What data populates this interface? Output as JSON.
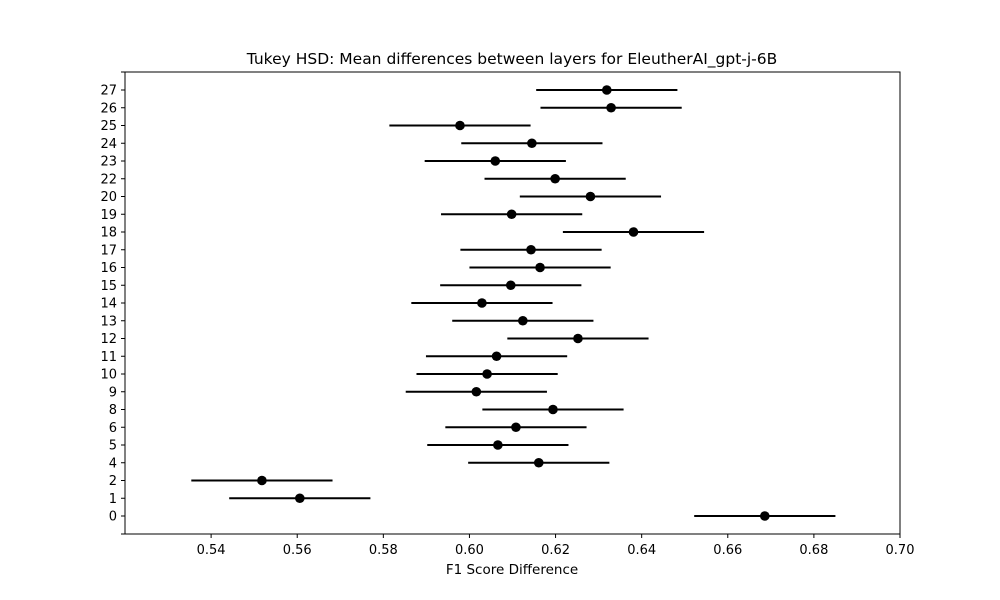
{
  "chart_data": {
    "type": "scatter",
    "subtype": "errorbar",
    "title": "Tukey HSD: Mean differences between layers for EleutherAI_gpt-j-6B",
    "xlabel": "F1 Score Difference",
    "ylabel": "",
    "xlim": [
      0.52,
      0.7
    ],
    "xticks": [
      "0.54",
      "0.56",
      "0.58",
      "0.60",
      "0.62",
      "0.64",
      "0.66",
      "0.68",
      "0.70"
    ],
    "grid": false,
    "marker_color": "#000000",
    "points": [
      {
        "label": "0",
        "mean": 0.6686,
        "lower": 0.6522,
        "upper": 0.685
      },
      {
        "label": "1",
        "mean": 0.5606,
        "lower": 0.5442,
        "upper": 0.577
      },
      {
        "label": "2",
        "mean": 0.5518,
        "lower": 0.5354,
        "upper": 0.5682
      },
      {
        "label": "4",
        "mean": 0.6161,
        "lower": 0.5997,
        "upper": 0.6325
      },
      {
        "label": "5",
        "mean": 0.6066,
        "lower": 0.5902,
        "upper": 0.623
      },
      {
        "label": "6",
        "mean": 0.6108,
        "lower": 0.5944,
        "upper": 0.6272
      },
      {
        "label": "8",
        "mean": 0.6194,
        "lower": 0.603,
        "upper": 0.6358
      },
      {
        "label": "9",
        "mean": 0.6016,
        "lower": 0.5852,
        "upper": 0.618
      },
      {
        "label": "10",
        "mean": 0.6041,
        "lower": 0.5877,
        "upper": 0.6205
      },
      {
        "label": "11",
        "mean": 0.6063,
        "lower": 0.5899,
        "upper": 0.6227
      },
      {
        "label": "12",
        "mean": 0.6252,
        "lower": 0.6088,
        "upper": 0.6416
      },
      {
        "label": "13",
        "mean": 0.6124,
        "lower": 0.596,
        "upper": 0.6288
      },
      {
        "label": "14",
        "mean": 0.6029,
        "lower": 0.5865,
        "upper": 0.6193
      },
      {
        "label": "15",
        "mean": 0.6096,
        "lower": 0.5932,
        "upper": 0.626
      },
      {
        "label": "16",
        "mean": 0.6164,
        "lower": 0.6,
        "upper": 0.6328
      },
      {
        "label": "17",
        "mean": 0.6143,
        "lower": 0.5979,
        "upper": 0.6307
      },
      {
        "label": "18",
        "mean": 0.6381,
        "lower": 0.6217,
        "upper": 0.6545
      },
      {
        "label": "19",
        "mean": 0.6098,
        "lower": 0.5934,
        "upper": 0.6262
      },
      {
        "label": "20",
        "mean": 0.6281,
        "lower": 0.6117,
        "upper": 0.6445
      },
      {
        "label": "22",
        "mean": 0.6199,
        "lower": 0.6035,
        "upper": 0.6363
      },
      {
        "label": "23",
        "mean": 0.606,
        "lower": 0.5896,
        "upper": 0.6224
      },
      {
        "label": "24",
        "mean": 0.6145,
        "lower": 0.5981,
        "upper": 0.6309
      },
      {
        "label": "25",
        "mean": 0.5978,
        "lower": 0.5814,
        "upper": 0.6142
      },
      {
        "label": "26",
        "mean": 0.6329,
        "lower": 0.6165,
        "upper": 0.6493
      },
      {
        "label": "27",
        "mean": 0.6319,
        "lower": 0.6155,
        "upper": 0.6483
      }
    ]
  }
}
